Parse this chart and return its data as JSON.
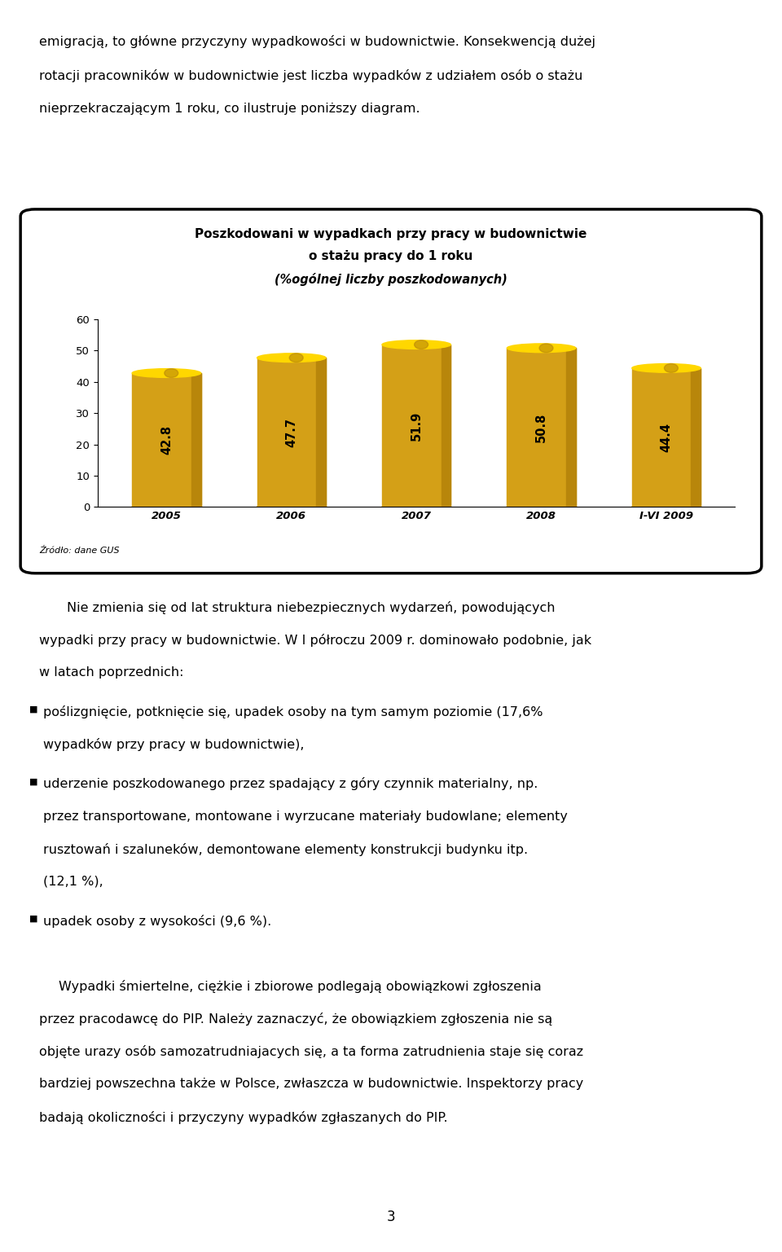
{
  "title_line1": "Poszkodowani w wypadkach przy pracy w budownictwie",
  "title_line2": "o stażu pracy do 1 roku",
  "title_line3": "(%ogólnej liczby poszkodowanych)",
  "categories": [
    "2005",
    "2006",
    "2007",
    "2008",
    "I-VI 2009"
  ],
  "values": [
    42.8,
    47.7,
    51.9,
    50.8,
    44.4
  ],
  "bar_color_body": "#D4A017",
  "bar_color_right": "#B8860B",
  "bar_color_top": "#FFD700",
  "ylim": [
    0,
    60
  ],
  "yticks": [
    0,
    10,
    20,
    30,
    40,
    50,
    60
  ],
  "source_text": "Źródło: dane GUS",
  "background_color": "#FFFFFF",
  "value_color": "#000000",
  "title_fontsize": 10.5,
  "tick_fontsize": 9.5,
  "value_fontsize": 10.5,
  "text_above1": "emigracją, to główne przyczyny wypadkowości w budownictwie. Konsekwencją dużej",
  "text_above2": "rotacji pracowników w budownictwie jest liczba wypadków z udziałem osób o stażu",
  "text_above3": "nieprzekraczającym 1 roku, co ilustruje poniższy diagram.",
  "text_below_intro": "Nie zmienia się od lat struktura niebezpiecznych wydarzeń, powodujących",
  "text_below_intro2": "wypadki przy pracy w budownictwie. W I półroczu 2009 r. dominowało podobnie, jak",
  "text_below_intro3": "w latach poprzednich:",
  "bullet1a": "poślizgnięcie, potknięcie się, upadek osoby na tym samym poziomie (17,6%",
  "bullet1b": "wypadków przy pracy w budownictwie),",
  "bullet2a": "uderzenie poszkodowanego przez spadający z góry czynnik materialny, np.",
  "bullet2b": "przez transportowane, montowane i wyrzucane materiały budowlane; elementy",
  "bullet2c": "rusztowań i szaluneków, demontowane elementy konstrukcji budynku itp.",
  "bullet2d": "(12,1 %),",
  "bullet3": "upadek osoby z wysokości (9,6 %).",
  "para2a": "Wypadki śmiertelne, ciężkie i zbiorowe podlegają obowiązkowi zgłoszenia",
  "para2b": "przez pracodawcę do PIP. Należy zaznaczyć, że obowiązkiem zgłoszenia nie są",
  "para2c": "objęte urazy osób samozatrudniajacych się, a ta forma zatrudnienia staje się coraz",
  "para2d": "bardziej powszechna także w Polsce, zwłaszcza w budownictwie. Inspektorzy pracy",
  "para2e": "badają okoliczności i przyczyny wypadków zgłaszanych do PIP.",
  "page_num": "3"
}
